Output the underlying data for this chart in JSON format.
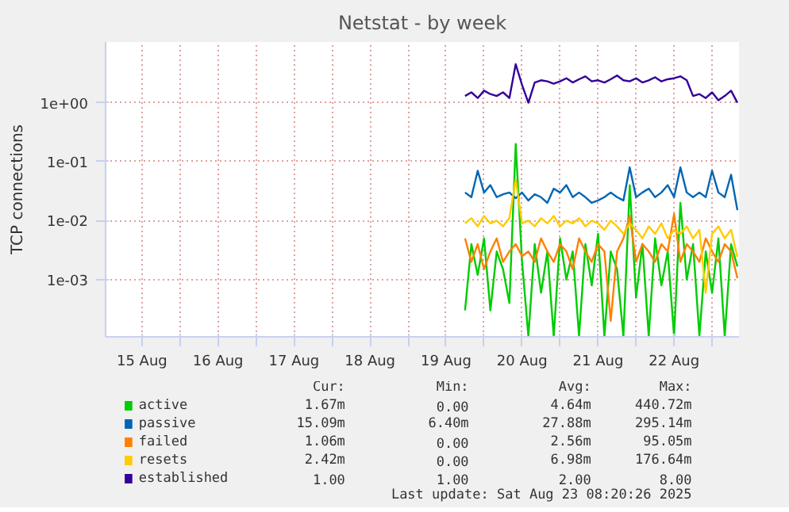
{
  "chart_data": {
    "type": "line",
    "title": "Netstat - by week",
    "ylabel": "TCP connections",
    "log": "y",
    "grid": true,
    "legend": "bottom",
    "xlim": [
      "2025-08-15T00:30",
      "2025-08-23T08:30"
    ],
    "xticks": [
      {
        "value": "2025-08-15T12:00",
        "label": "15 Aug"
      },
      {
        "value": "2025-08-16T12:00",
        "label": "16 Aug"
      },
      {
        "value": "2025-08-17T12:00",
        "label": "17 Aug"
      },
      {
        "value": "2025-08-18T12:00",
        "label": "18 Aug"
      },
      {
        "value": "2025-08-19T12:00",
        "label": "19 Aug"
      },
      {
        "value": "2025-08-20T12:00",
        "label": "20 Aug"
      },
      {
        "value": "2025-08-21T12:00",
        "label": "21 Aug"
      },
      {
        "value": "2025-08-22T12:00",
        "label": "22 Aug"
      },
      {
        "value": "2025-08-16T00:00",
        "label": null
      },
      {
        "value": "2025-08-17T00:00",
        "label": null
      },
      {
        "value": "2025-08-18T00:00",
        "label": null
      },
      {
        "value": "2025-08-19T00:00",
        "label": null
      },
      {
        "value": "2025-08-20T00:00",
        "label": null
      },
      {
        "value": "2025-08-21T00:00",
        "label": null
      },
      {
        "value": "2025-08-22T00:00",
        "label": null
      },
      {
        "value": "2025-08-23T00:00",
        "label": null
      }
    ],
    "ylim": [
      0.000107,
      10.7
    ],
    "yticks": [
      {
        "value": 0.001,
        "label": "1e-03"
      },
      {
        "value": 0.01,
        "label": "1e-02"
      },
      {
        "value": 0.1,
        "label": "1e-01"
      },
      {
        "value": 1,
        "label": "1e+00"
      }
    ],
    "x": [
      "2025-08-19T18:00",
      "2025-08-19T20:00",
      "2025-08-19T22:00",
      "2025-08-20T00:00",
      "2025-08-20T02:00",
      "2025-08-20T04:00",
      "2025-08-20T06:00",
      "2025-08-20T08:00",
      "2025-08-20T10:00",
      "2025-08-20T12:00",
      "2025-08-20T14:00",
      "2025-08-20T16:00",
      "2025-08-20T18:00",
      "2025-08-20T20:00",
      "2025-08-20T22:00",
      "2025-08-21T00:00",
      "2025-08-21T02:00",
      "2025-08-21T04:00",
      "2025-08-21T06:00",
      "2025-08-21T08:00",
      "2025-08-21T10:00",
      "2025-08-21T12:00",
      "2025-08-21T14:00",
      "2025-08-21T16:00",
      "2025-08-21T18:00",
      "2025-08-21T20:00",
      "2025-08-21T22:00",
      "2025-08-22T00:00",
      "2025-08-22T02:00",
      "2025-08-22T04:00",
      "2025-08-22T06:00",
      "2025-08-22T08:00",
      "2025-08-22T10:00",
      "2025-08-22T12:00",
      "2025-08-22T14:00",
      "2025-08-22T16:00",
      "2025-08-22T18:00",
      "2025-08-22T20:00",
      "2025-08-22T22:00",
      "2025-08-23T00:00",
      "2025-08-23T02:00",
      "2025-08-23T04:00",
      "2025-08-23T06:00",
      "2025-08-23T08:00"
    ],
    "series": [
      {
        "name": "active",
        "color": "#00cc00",
        "values": [
          0.0003,
          0.004,
          0.0012,
          0.005,
          0.0003,
          0.003,
          0.0015,
          0.0004,
          0.2,
          0.002,
          0.00011,
          0.004,
          0.0006,
          0.003,
          0.00011,
          0.005,
          0.001,
          0.003,
          0.00011,
          0.004,
          0.0008,
          0.006,
          0.00011,
          0.003,
          0.0015,
          0.00011,
          0.04,
          0.0005,
          0.004,
          0.00011,
          0.005,
          0.0008,
          0.003,
          0.00011,
          0.02,
          0.001,
          0.004,
          0.00011,
          0.003,
          0.0006,
          0.005,
          0.00011,
          0.004,
          0.00167
        ]
      },
      {
        "name": "passive",
        "color": "#0066b3",
        "values": [
          0.03,
          0.025,
          0.07,
          0.03,
          0.04,
          0.025,
          0.028,
          0.03,
          0.024,
          0.03,
          0.022,
          0.028,
          0.025,
          0.02,
          0.035,
          0.03,
          0.04,
          0.025,
          0.03,
          0.025,
          0.02,
          0.022,
          0.025,
          0.03,
          0.025,
          0.022,
          0.08,
          0.025,
          0.03,
          0.035,
          0.025,
          0.03,
          0.04,
          0.025,
          0.08,
          0.03,
          0.025,
          0.03,
          0.025,
          0.07,
          0.03,
          0.025,
          0.06,
          0.01509
        ]
      },
      {
        "name": "failed",
        "color": "#ff8000",
        "values": [
          0.005,
          0.002,
          0.004,
          0.0015,
          0.003,
          0.005,
          0.002,
          0.003,
          0.004,
          0.0025,
          0.003,
          0.002,
          0.005,
          0.003,
          0.002,
          0.004,
          0.003,
          0.0015,
          0.005,
          0.003,
          0.002,
          0.004,
          0.003,
          0.0002,
          0.003,
          0.005,
          0.012,
          0.002,
          0.004,
          0.003,
          0.002,
          0.004,
          0.003,
          0.013,
          0.002,
          0.004,
          0.003,
          0.002,
          0.005,
          0.003,
          0.002,
          0.004,
          0.003,
          0.00106
        ]
      },
      {
        "name": "resets",
        "color": "#ffcc00",
        "values": [
          0.009,
          0.011,
          0.008,
          0.012,
          0.009,
          0.01,
          0.008,
          0.011,
          0.05,
          0.009,
          0.01,
          0.008,
          0.011,
          0.009,
          0.012,
          0.008,
          0.01,
          0.009,
          0.011,
          0.008,
          0.01,
          0.009,
          0.007,
          0.01,
          0.008,
          0.006,
          0.009,
          0.007,
          0.005,
          0.008,
          0.006,
          0.009,
          0.005,
          0.007,
          0.006,
          0.008,
          0.005,
          0.007,
          0.0006,
          0.006,
          0.008,
          0.005,
          0.007,
          0.00242
        ]
      },
      {
        "name": "established",
        "color": "#330099",
        "values": [
          1.3,
          1.5,
          1.2,
          1.6,
          1.4,
          1.3,
          1.5,
          1.2,
          4.5,
          2.0,
          1.0,
          2.2,
          2.4,
          2.3,
          2.1,
          2.3,
          2.6,
          2.2,
          2.5,
          2.8,
          2.3,
          2.4,
          2.2,
          2.5,
          2.9,
          2.4,
          2.3,
          2.6,
          2.2,
          2.4,
          2.7,
          2.3,
          2.5,
          2.6,
          2.8,
          2.4,
          1.3,
          1.4,
          1.2,
          1.5,
          1.1,
          1.3,
          1.6,
          1.0
        ]
      }
    ],
    "annotations": [
      "Cur:",
      "Min:",
      "Avg:",
      "Max:",
      "1.67m",
      "0.00",
      "4.64m",
      "440.72m",
      "15.09m",
      "6.40m",
      "27.88m",
      "295.14m",
      "1.06m",
      "0.00",
      "2.56m",
      "95.05m",
      "2.42m",
      "0.00",
      "6.98m",
      "176.64m",
      "1.00",
      "1.00",
      "2.00",
      "8.00",
      "Last update: Sat Aug 23 08:20:26 2025"
    ]
  }
}
